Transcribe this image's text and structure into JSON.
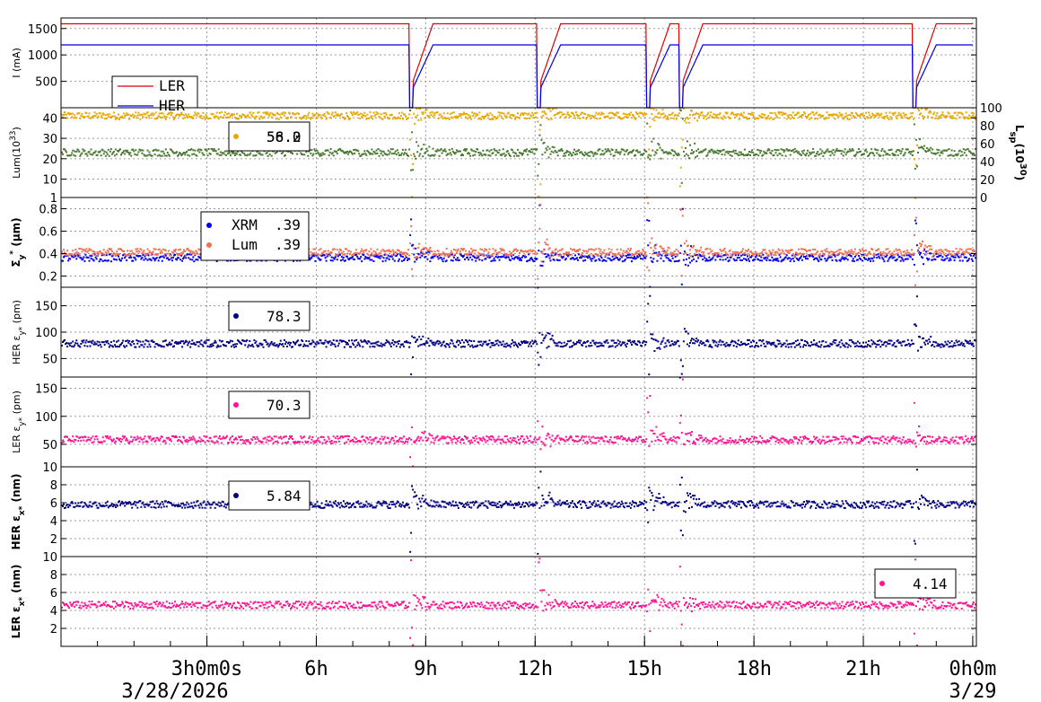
{
  "chart_data": {
    "type": "line",
    "x_axis": {
      "range_hours": [
        -1,
        24.1
      ],
      "ticks": [
        {
          "h": 3,
          "label": "3h0m0s"
        },
        {
          "h": 6,
          "label": "6h"
        },
        {
          "h": 9,
          "label": "9h"
        },
        {
          "h": 12,
          "label": "12h"
        },
        {
          "h": 15,
          "label": "15h"
        },
        {
          "h": 18,
          "label": "18h"
        },
        {
          "h": 21,
          "label": "21h"
        },
        {
          "h": 24,
          "label": "0h0m"
        }
      ],
      "date_left": "3/28/2026",
      "date_right": "3/29"
    },
    "injection_gaps_hours": [
      8.6,
      12.1,
      15.1,
      16.0,
      22.4
    ],
    "panels": [
      {
        "id": "current",
        "ylabel": "I (mA)",
        "ylim": [
          0,
          1700
        ],
        "yticks": [
          500,
          1000,
          1500
        ],
        "series": [
          {
            "name": "LER",
            "color": "#e00000",
            "level": 1590,
            "style": "line"
          },
          {
            "name": "HER",
            "color": "#0000e0",
            "level": 1190,
            "style": "line"
          }
        ],
        "legend": [
          "LER",
          "HER"
        ]
      },
      {
        "id": "luminosity",
        "ylabel": "Lum(10",
        "ylabel_sup": "33",
        "ylabel_end": ")",
        "ylabel_right": "L",
        "ylabel_right_sub": "sp",
        "ylabel_right_mid": "(10",
        "ylabel_right_sup": "30",
        "ylabel_right_end": ")",
        "ylim": [
          1,
          45
        ],
        "yticks": [
          1,
          10,
          20,
          30,
          40
        ],
        "yticks_right": [
          0,
          20,
          40,
          60,
          80,
          100
        ],
        "series": [
          {
            "name": "Lum",
            "color": "#e8a800",
            "level": 41.5
          },
          {
            "name": "Lsp",
            "color": "#4a7a30",
            "level": 23.5
          }
        ],
        "legend_value": "56.0",
        "legend_value_overlap": "58.2"
      },
      {
        "id": "sigma_y",
        "ylabel": "Σ",
        "ylabel_sub": "y",
        "ylabel_sup": "*",
        "ylabel_end": " (μm)",
        "ylim": [
          0.1,
          0.9
        ],
        "yticks": [
          0.2,
          0.4,
          0.6,
          0.8
        ],
        "ytick_labels": [
          "0.2",
          "0.4",
          "0.6",
          "0.8"
        ],
        "series": [
          {
            "name": "XRM",
            "color": "#0000ee",
            "level": 0.37,
            "value": ".39"
          },
          {
            "name": "Lum",
            "color": "#f07050",
            "level": 0.42,
            "value": ".39"
          }
        ]
      },
      {
        "id": "her_eps_y",
        "ylabel": "HER ε",
        "ylabel_sub": "y*",
        "ylabel_end": " (pm)",
        "ylim": [
          15,
          185
        ],
        "yticks": [
          50,
          100,
          150
        ],
        "series": [
          {
            "name": "HER εy*",
            "color": "#000080",
            "level": 80
          }
        ],
        "legend_value": "78.3"
      },
      {
        "id": "ler_eps_y",
        "ylabel": "LER ε",
        "ylabel_sub": "y*",
        "ylabel_end": " (pm)",
        "ylim": [
          10,
          170
        ],
        "yticks": [
          10,
          50,
          100,
          150
        ],
        "series": [
          {
            "name": "LER εy*",
            "color": "#ff1493",
            "level": 60
          }
        ],
        "legend_value": "70.3"
      },
      {
        "id": "her_eps_x",
        "ylabel": "HER ε",
        "ylabel_sub": "x*",
        "ylabel_end": " (nm)",
        "ylim": [
          0,
          10
        ],
        "yticks": [
          2,
          4,
          6,
          8
        ],
        "series": [
          {
            "name": "HER εx*",
            "color": "#000080",
            "level": 5.9
          }
        ],
        "legend_value": "5.84"
      },
      {
        "id": "ler_eps_x",
        "ylabel": "LER ε",
        "ylabel_sub": "x*",
        "ylabel_end": " (nm)",
        "ylim": [
          0,
          10
        ],
        "yticks": [
          2,
          4,
          6,
          8,
          10
        ],
        "series": [
          {
            "name": "LER εx*",
            "color": "#ff1493",
            "level": 4.7
          }
        ],
        "legend_value": "4.14"
      }
    ]
  }
}
